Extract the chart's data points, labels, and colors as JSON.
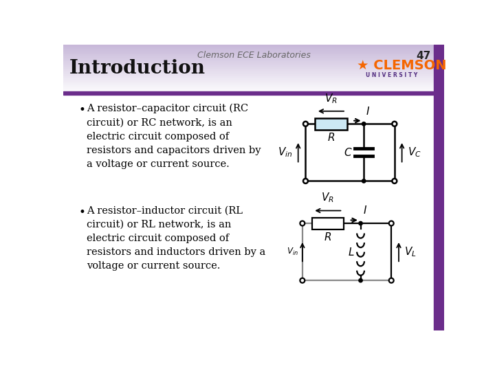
{
  "title_header": "Clemson ECE Laboratories",
  "slide_number": "47",
  "section_title": "Introduction",
  "bullet1": "A resistor–capacitor circuit (RC\ncircuit) or RC network, is an\nelectric circuit composed of\nresistors and capacitors driven by\na voltage or current source.",
  "bullet2": "A resistor–inductor circuit (RL\ncircuit) or RL network, is an\nelectric circuit composed of\nresistors and inductors driven by a\nvoltage or current source.",
  "header_purple": "#6b2d8b",
  "purple_bar": "#6b2d8b",
  "clemson_orange": "#F56600",
  "clemson_purple": "#522D80",
  "body_bg": "#ffffff"
}
